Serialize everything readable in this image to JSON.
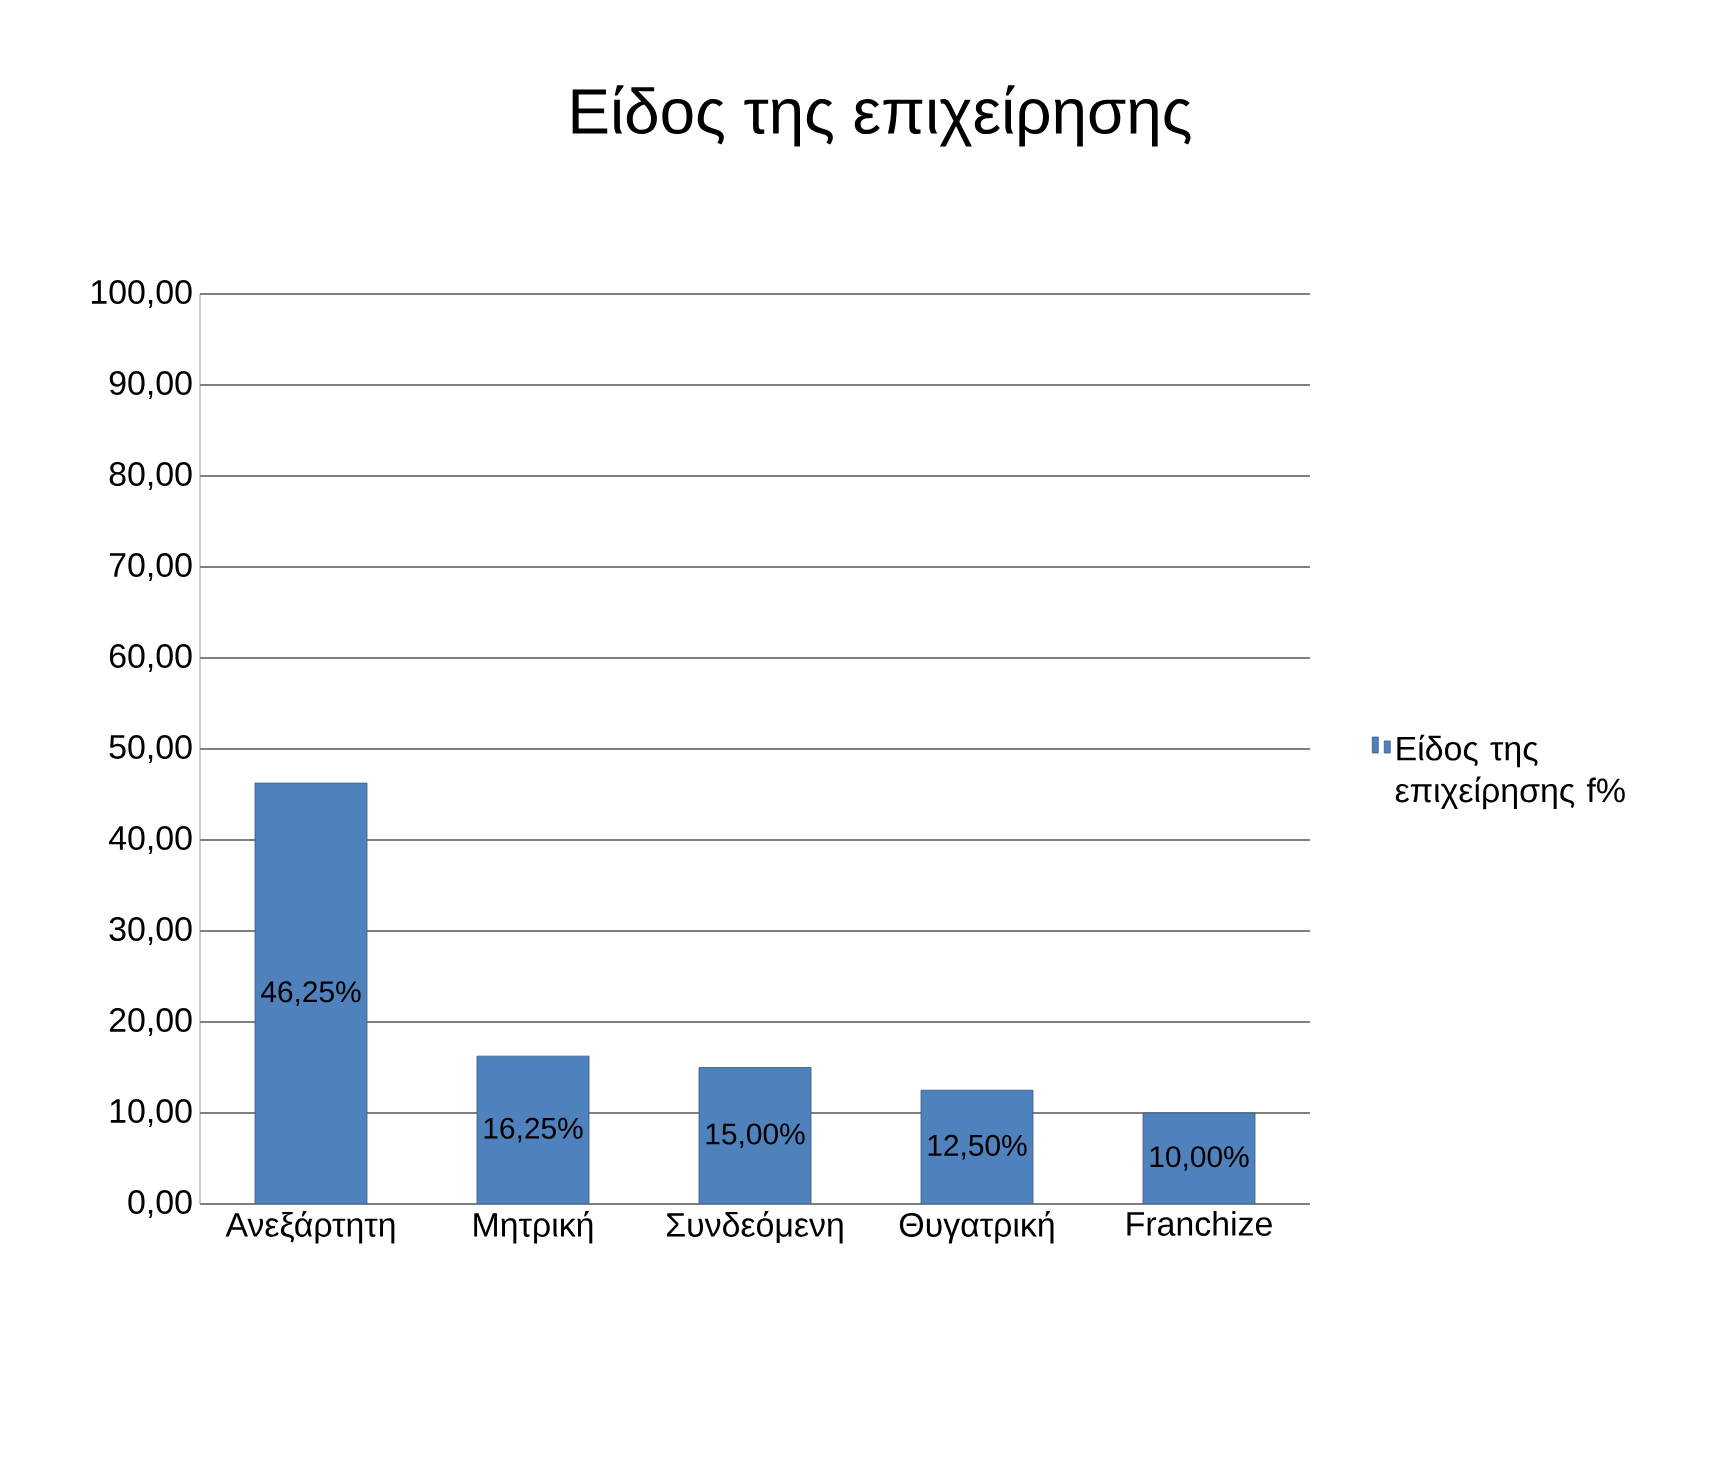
{
  "chart_data": {
    "type": "bar",
    "title": "Είδος της επιχείρησης",
    "categories": [
      "Ανεξάρτητη",
      "Μητρική",
      "Συνδεόμενη",
      "Θυγατρική",
      "Franchize"
    ],
    "series": [
      {
        "name": "Είδος της επιχείρησης f%",
        "color": "#4f81bd",
        "values": [
          46.25,
          16.25,
          15.0,
          12.5,
          10.0
        ],
        "value_labels": [
          "46,25%",
          "16,25%",
          "15,00%",
          "12,50%",
          "10,00%"
        ]
      }
    ],
    "ylim": [
      0,
      100
    ],
    "yticks": [
      {
        "value": 0,
        "label": "0,00"
      },
      {
        "value": 10,
        "label": "10,00"
      },
      {
        "value": 20,
        "label": "20,00"
      },
      {
        "value": 30,
        "label": "30,00"
      },
      {
        "value": 40,
        "label": "40,00"
      },
      {
        "value": 50,
        "label": "50,00"
      },
      {
        "value": 60,
        "label": "60,00"
      },
      {
        "value": 70,
        "label": "70,00"
      },
      {
        "value": 80,
        "label": "80,00"
      },
      {
        "value": 90,
        "label": "90,00"
      },
      {
        "value": 100,
        "label": "100,00"
      }
    ],
    "grid": "y",
    "legend": "right"
  }
}
